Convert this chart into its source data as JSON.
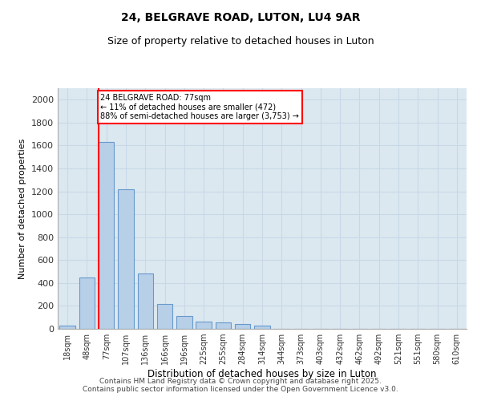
{
  "title1": "24, BELGRAVE ROAD, LUTON, LU4 9AR",
  "title2": "Size of property relative to detached houses in Luton",
  "xlabel": "Distribution of detached houses by size in Luton",
  "ylabel": "Number of detached properties",
  "categories": [
    "18sqm",
    "48sqm",
    "77sqm",
    "107sqm",
    "136sqm",
    "166sqm",
    "196sqm",
    "225sqm",
    "255sqm",
    "284sqm",
    "314sqm",
    "344sqm",
    "373sqm",
    "403sqm",
    "432sqm",
    "462sqm",
    "492sqm",
    "521sqm",
    "551sqm",
    "580sqm",
    "610sqm"
  ],
  "values": [
    30,
    450,
    1630,
    1220,
    480,
    220,
    110,
    60,
    55,
    45,
    25,
    0,
    0,
    0,
    0,
    0,
    0,
    0,
    0,
    0,
    0
  ],
  "bar_color": "#b8cfe8",
  "bar_edge_color": "#6699cc",
  "vline_color": "red",
  "annotation_text": "24 BELGRAVE ROAD: 77sqm\n← 11% of detached houses are smaller (472)\n88% of semi-detached houses are larger (3,753) →",
  "annotation_box_color": "red",
  "ylim": [
    0,
    2100
  ],
  "yticks": [
    0,
    200,
    400,
    600,
    800,
    1000,
    1200,
    1400,
    1600,
    1800,
    2000
  ],
  "grid_color": "#c8d8e8",
  "background_color": "#dce8f0",
  "footer": "Contains HM Land Registry data © Crown copyright and database right 2025.\nContains public sector information licensed under the Open Government Licence v3.0."
}
